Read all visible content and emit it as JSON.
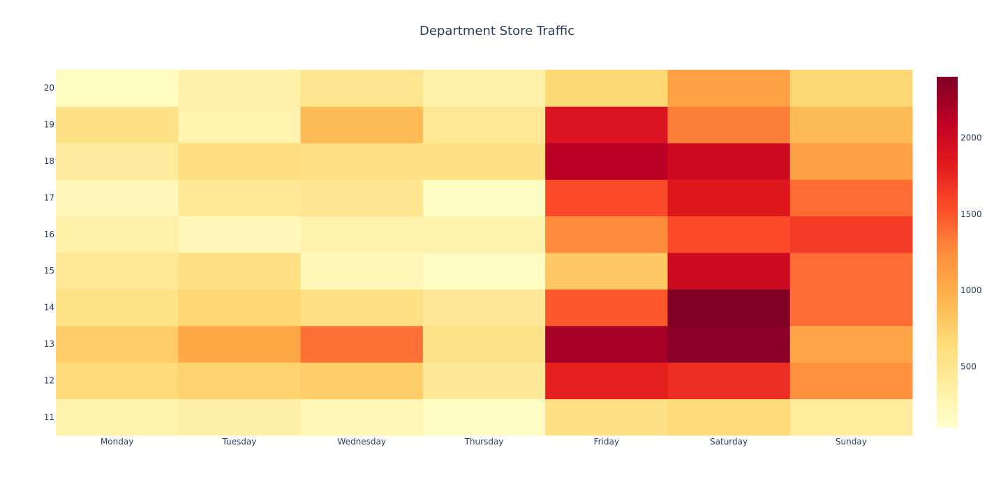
{
  "chart_data": {
    "type": "heatmap",
    "title": "Department Store Traffic",
    "xlabel": "",
    "ylabel": "",
    "x": [
      "Monday",
      "Tuesday",
      "Wednesday",
      "Thursday",
      "Friday",
      "Saturday",
      "Sunday"
    ],
    "y": [
      "11",
      "12",
      "13",
      "14",
      "15",
      "16",
      "17",
      "18",
      "19",
      "20"
    ],
    "z": [
      [
        300,
        350,
        260,
        160,
        560,
        660,
        420
      ],
      [
        660,
        720,
        760,
        440,
        1800,
        1720,
        1220
      ],
      [
        760,
        1050,
        1380,
        540,
        2220,
        2350,
        1060
      ],
      [
        550,
        700,
        580,
        440,
        1500,
        2400,
        1400
      ],
      [
        460,
        580,
        230,
        150,
        800,
        2000,
        1400
      ],
      [
        340,
        220,
        300,
        310,
        1260,
        1560,
        1640
      ],
      [
        220,
        460,
        500,
        150,
        1560,
        1860,
        1400
      ],
      [
        410,
        610,
        560,
        570,
        2120,
        2000,
        1100
      ],
      [
        560,
        290,
        900,
        460,
        1900,
        1320,
        900
      ],
      [
        170,
        320,
        500,
        340,
        680,
        1100,
        680
      ]
    ],
    "colorscale": "YlOrRd",
    "colorbar": {
      "range": [
        100,
        2400
      ],
      "ticks": [
        500,
        1000,
        1500,
        2000
      ]
    }
  }
}
